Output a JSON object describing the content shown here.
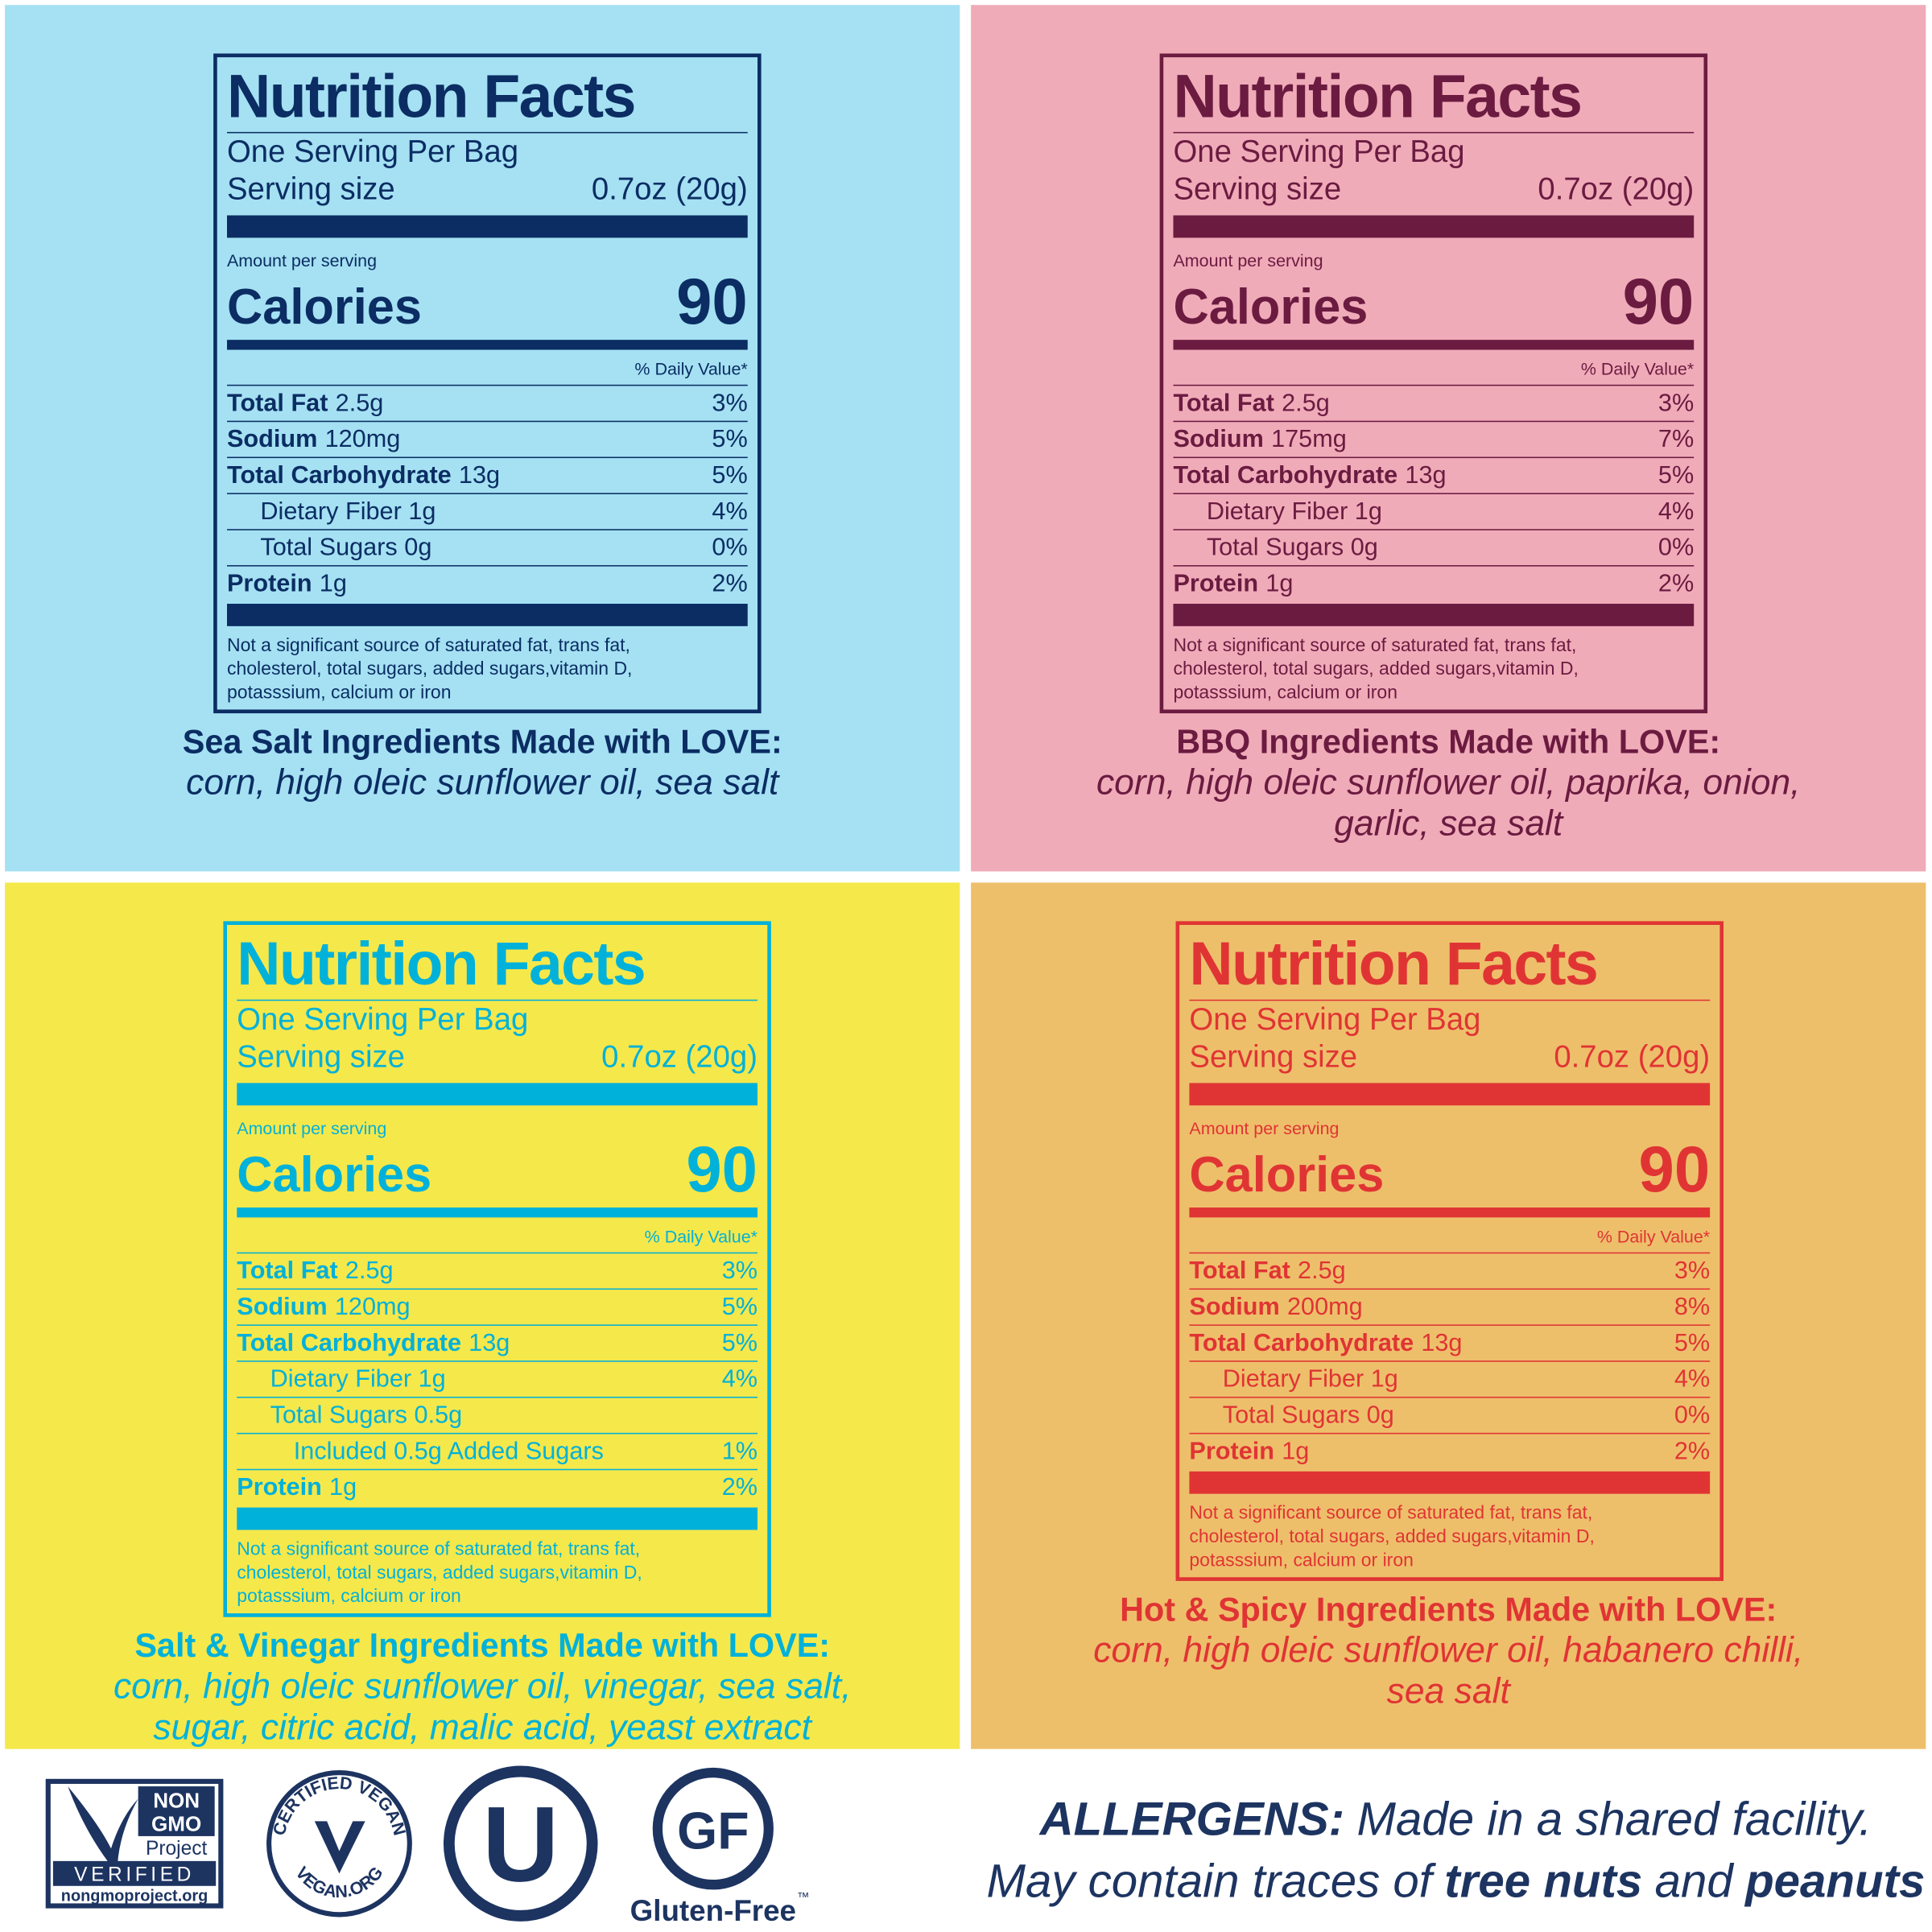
{
  "panels": [
    {
      "background": "#a5e1f3",
      "ink": "#0b2d63",
      "label": {
        "title": "Nutrition Facts",
        "servings": "One Serving Per Bag",
        "serving_size_label": "Serving size",
        "serving_size": "0.7oz (20g)",
        "amount_label": "Amount per serving",
        "calories_label": "Calories",
        "calories": "90",
        "daily_value_label": "% Daily Value*",
        "rows": [
          {
            "name": "Total Fat",
            "amount": "2.5g",
            "daily_value": "3%"
          },
          {
            "name": "Sodium",
            "amount": "120mg",
            "daily_value": "5%"
          },
          {
            "name": "Total Carbohydrate",
            "amount": "13g",
            "daily_value": "5%",
            "subrows": [
              {
                "name": "Dietary Fiber 1g",
                "daily_value": "4%"
              },
              {
                "name": "Total Sugars 0g",
                "daily_value": "0%"
              }
            ]
          },
          {
            "name": "Protein",
            "amount": "1g",
            "daily_value": "2%"
          }
        ],
        "footnote": [
          "Not a significant source of saturated fat, trans fat,",
          "cholesterol, total sugars, added sugars,vitamin D,",
          "potasssium, calcium or iron"
        ]
      },
      "ingredients_heading": "Sea Salt Ingredients Made with LOVE:",
      "ingredients": [
        "corn, high oleic sunflower oil, sea salt"
      ]
    },
    {
      "background": "#f0abb9",
      "ink": "#6b1b40",
      "label": {
        "title": "Nutrition Facts",
        "servings": "One Serving Per Bag",
        "serving_size_label": "Serving size",
        "serving_size": "0.7oz (20g)",
        "amount_label": "Amount per serving",
        "calories_label": "Calories",
        "calories": "90",
        "daily_value_label": "% Daily Value*",
        "rows": [
          {
            "name": "Total Fat",
            "amount": "2.5g",
            "daily_value": "3%"
          },
          {
            "name": "Sodium",
            "amount": "175mg",
            "daily_value": "7%"
          },
          {
            "name": "Total Carbohydrate",
            "amount": "13g",
            "daily_value": "5%",
            "subrows": [
              {
                "name": "Dietary Fiber 1g",
                "daily_value": "4%"
              },
              {
                "name": "Total Sugars 0g",
                "daily_value": "0%"
              }
            ]
          },
          {
            "name": "Protein",
            "amount": "1g",
            "daily_value": "2%"
          }
        ],
        "footnote": [
          "Not a significant source of saturated fat, trans fat,",
          "cholesterol, total sugars, added sugars,vitamin D,",
          "potasssium, calcium or iron"
        ]
      },
      "ingredients_heading": "BBQ Ingredients Made with LOVE:",
      "ingredients": [
        "corn, high oleic sunflower oil, paprika, onion,",
        "garlic, sea salt"
      ]
    },
    {
      "background": "#f5e84b",
      "ink": "#00b1da",
      "label": {
        "title": "Nutrition Facts",
        "servings": "One Serving Per Bag",
        "serving_size_label": "Serving size",
        "serving_size": "0.7oz (20g)",
        "amount_label": "Amount per serving",
        "calories_label": "Calories",
        "calories": "90",
        "daily_value_label": "% Daily Value*",
        "rows": [
          {
            "name": "Total Fat",
            "amount": "2.5g",
            "daily_value": "3%"
          },
          {
            "name": "Sodium",
            "amount": "120mg",
            "daily_value": "5%"
          },
          {
            "name": "Total Carbohydrate",
            "amount": "13g",
            "daily_value": "5%",
            "subrows": [
              {
                "name": "Dietary Fiber 1g",
                "daily_value": "4%"
              },
              {
                "name": "Total Sugars 0.5g",
                "subrows": [
                  {
                    "name": "Included 0.5g Added Sugars",
                    "daily_value": "1%"
                  }
                ]
              }
            ]
          },
          {
            "name": "Protein",
            "amount": "1g",
            "daily_value": "2%"
          }
        ],
        "footnote": [
          "Not a significant source of saturated fat, trans fat,",
          "cholesterol, total sugars, added sugars,vitamin D,",
          "potasssium, calcium or iron"
        ]
      },
      "ingredients_heading": "Salt & Vinegar Ingredients Made with LOVE:",
      "ingredients": [
        "corn, high oleic sunflower oil, vinegar, sea salt,",
        "sugar, citric acid, malic acid, yeast extract"
      ]
    },
    {
      "background": "#eebf6b",
      "ink": "#e03434",
      "label": {
        "title": "Nutrition Facts",
        "servings": "One Serving Per Bag",
        "serving_size_label": "Serving size",
        "serving_size": "0.7oz (20g)",
        "amount_label": "Amount per serving",
        "calories_label": "Calories",
        "calories": "90",
        "daily_value_label": "% Daily Value*",
        "rows": [
          {
            "name": "Total Fat",
            "amount": "2.5g",
            "daily_value": "3%"
          },
          {
            "name": "Sodium",
            "amount": "200mg",
            "daily_value": "8%"
          },
          {
            "name": "Total Carbohydrate",
            "amount": "13g",
            "daily_value": "5%",
            "subrows": [
              {
                "name": "Dietary Fiber 1g",
                "daily_value": "4%"
              },
              {
                "name": "Total Sugars 0g",
                "daily_value": "0%"
              }
            ]
          },
          {
            "name": "Protein",
            "amount": "1g",
            "daily_value": "2%"
          }
        ],
        "footnote": [
          "Not a significant source of saturated fat, trans fat,",
          "cholesterol, total sugars, added sugars,vitamin D,",
          "potasssium, calcium or iron"
        ]
      },
      "ingredients_heading": "Hot & Spicy Ingredients Made with LOVE:",
      "ingredients": [
        "corn, high oleic sunflower oil, habanero chilli,",
        "sea salt"
      ]
    }
  ],
  "logos": {
    "non_gmo": [
      "NON",
      "GMO",
      "Project",
      "VERIFIED",
      "nongmoproject.org"
    ],
    "vegan": [
      "CERTIFIED VEGAN",
      "VEGAN.ORG"
    ],
    "kosher": "U",
    "gluten_free": {
      "mark": "GF",
      "label": "Gluten-Free",
      "tm": "™"
    }
  },
  "allergens": {
    "label": "ALLERGENS:",
    "line1": "Made in a shared facility.",
    "line2": [
      "May contain traces of",
      "tree nuts",
      "and",
      "peanuts"
    ]
  }
}
